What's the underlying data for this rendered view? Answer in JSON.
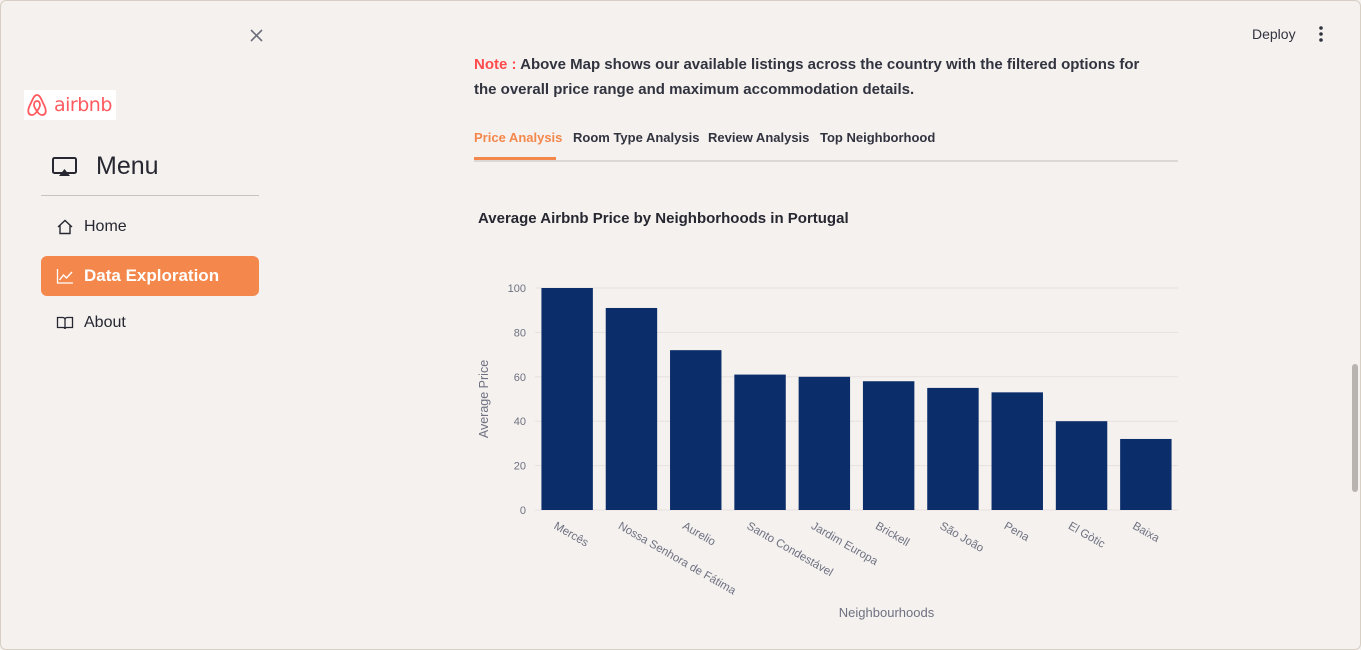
{
  "sidebar": {
    "logo_text": "airbnb",
    "menu_title": "Menu",
    "items": [
      {
        "label": "Home",
        "icon": "home-icon",
        "active": false
      },
      {
        "label": "Data Exploration",
        "icon": "chart-icon",
        "active": true
      },
      {
        "label": "About",
        "icon": "book-icon",
        "active": false
      }
    ]
  },
  "toolbar": {
    "deploy_label": "Deploy"
  },
  "note": {
    "prefix": "Note :",
    "text": " Above Map shows our available listings across the country with the filtered options for the overall price range and maximum accommodation details."
  },
  "tabs": [
    "Price Analysis",
    "Room Type Analysis",
    "Review Analysis",
    "Top Neighborhood"
  ],
  "active_tab": 0,
  "colors": {
    "accent": "#f4874b",
    "bar": "#0b2e6b",
    "note": "#ff4b4b"
  },
  "chart_data": {
    "type": "bar",
    "title": "Average Airbnb Price by Neighborhoods in Portugal",
    "xlabel": "Neighbourhoods",
    "ylabel": "Average Price",
    "categories": [
      "Mercês",
      "Nossa Senhora de Fátima",
      "Aurelio",
      "Santo Condestável",
      "Jardim Europa",
      "Brickell",
      "São João",
      "Pena",
      "El Gòtic",
      "Baixa"
    ],
    "values": [
      100,
      91,
      72,
      61,
      60,
      58,
      55,
      53,
      40,
      32
    ],
    "ylim": [
      0,
      100
    ],
    "yticks": [
      0,
      20,
      40,
      60,
      80,
      100
    ],
    "grid": true
  }
}
